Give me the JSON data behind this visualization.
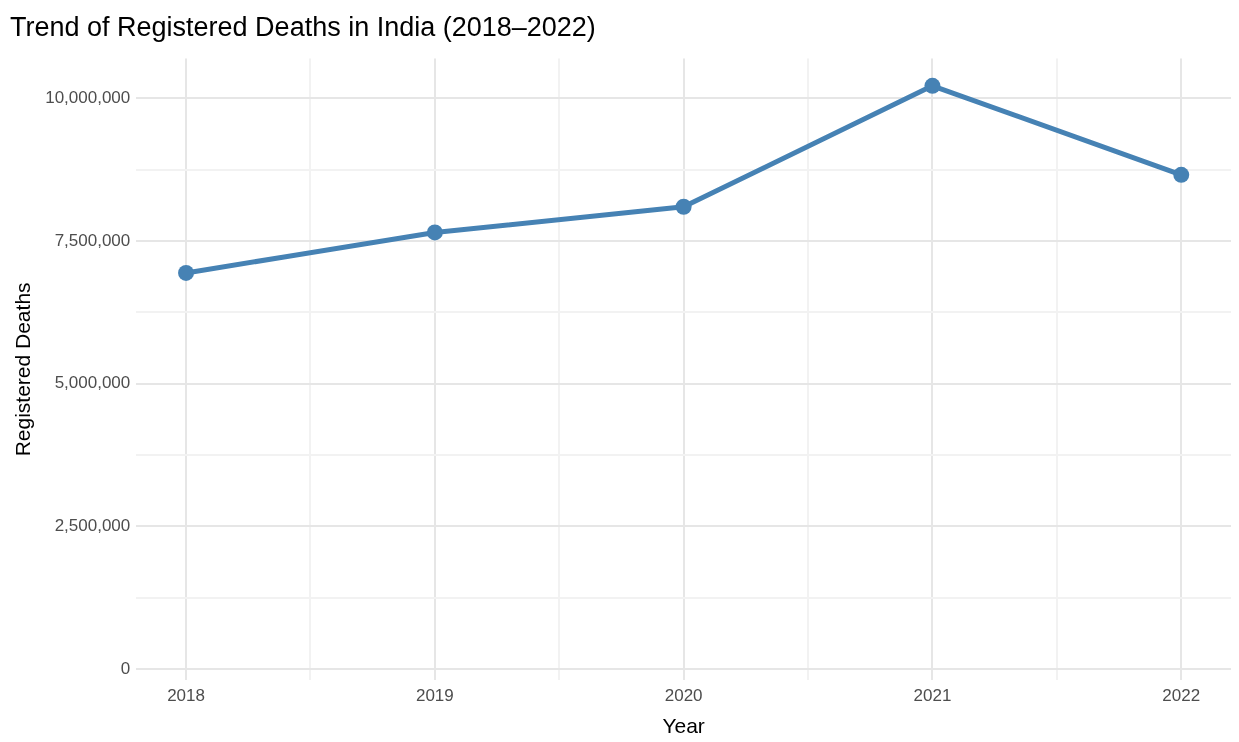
{
  "chart_data": {
    "type": "line",
    "title": "Trend of Registered Deaths in India (2018–2022)",
    "xlabel": "Year",
    "ylabel": "Registered Deaths",
    "x": [
      2018,
      2019,
      2020,
      2021,
      2022
    ],
    "series": [
      {
        "color": "#4682b4",
        "values": [
          6940000,
          7650000,
          8100000,
          10220000,
          8660000
        ]
      }
    ],
    "xlim": [
      2017.8,
      2022.2
    ],
    "xticks": [
      2018,
      {
        "value": 2018.5,
        "label": null
      },
      2019,
      {
        "value": 2019.5,
        "label": null
      },
      2020,
      {
        "value": 2020.5,
        "label": null
      },
      2021,
      {
        "value": 2021.5,
        "label": null
      },
      2022
    ],
    "ylim": [
      -200000,
      10700000
    ],
    "yticks": [
      {
        "value": 0,
        "label": "0"
      },
      {
        "value": 1250000,
        "label": null
      },
      {
        "value": 2500000,
        "label": "2,500,000"
      },
      {
        "value": 3750000,
        "label": null
      },
      {
        "value": 5000000,
        "label": "5,000,000"
      },
      {
        "value": 6250000,
        "label": null
      },
      {
        "value": 7500000,
        "label": "7,500,000"
      },
      {
        "value": 8750000,
        "label": null
      },
      {
        "value": 10000000,
        "label": "10,000,000"
      }
    ],
    "grid": true,
    "marker": "circle",
    "line_style": "solid",
    "legend": false
  }
}
